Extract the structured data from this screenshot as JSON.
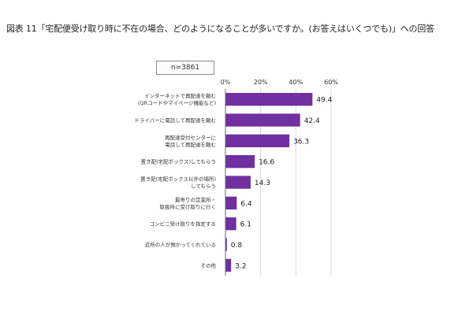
{
  "title": "図表 11「宅配便受け取り時に不在の場合、どのようになることが多いですか。(お答えはいくつでも)」への回答",
  "sample_label": "n=3861",
  "colors": {
    "bar": "#7030a0",
    "axis": "#666666",
    "grid": "#d9d9d9"
  },
  "chart_data": {
    "type": "bar",
    "orientation": "horizontal",
    "title": "図表 11「宅配便受け取り時に不在の場合、どのようになることが多いですか。(お答えはいくつでも)」への回答",
    "categories": [
      [
        "インターネットで再配達を頼む",
        "(QRコードやマイページ機能など)"
      ],
      [
        "ドライバーに電話して再配達を頼む"
      ],
      [
        "再配達受付センターに",
        "電話して再配達を頼む"
      ],
      [
        "置き配(宅配ボックス)してもらう"
      ],
      [
        "置き配(宅配ボックス以外の場所)",
        "してもらう"
      ],
      [
        "最寄りの営業所・",
        "取扱所に受け取りに行く"
      ],
      [
        "コンビニ受け取りを指定する"
      ],
      [
        "近所の人が預かってくれている"
      ],
      [
        "その他"
      ]
    ],
    "values": [
      49.4,
      42.4,
      36.3,
      16.6,
      14.3,
      6.4,
      6.1,
      0.8,
      3.2
    ],
    "value_labels": [
      "49.4",
      "42.4",
      "36.3",
      "16.6",
      "14.3",
      "6.4",
      "6.1",
      "0.8",
      "3.2"
    ],
    "xlim": [
      0,
      60
    ],
    "xticks": [
      0,
      20,
      40,
      60
    ],
    "xtick_labels": [
      "0%",
      "20%",
      "40%",
      "60%"
    ],
    "grid": true,
    "xlabel": "",
    "ylabel": ""
  }
}
